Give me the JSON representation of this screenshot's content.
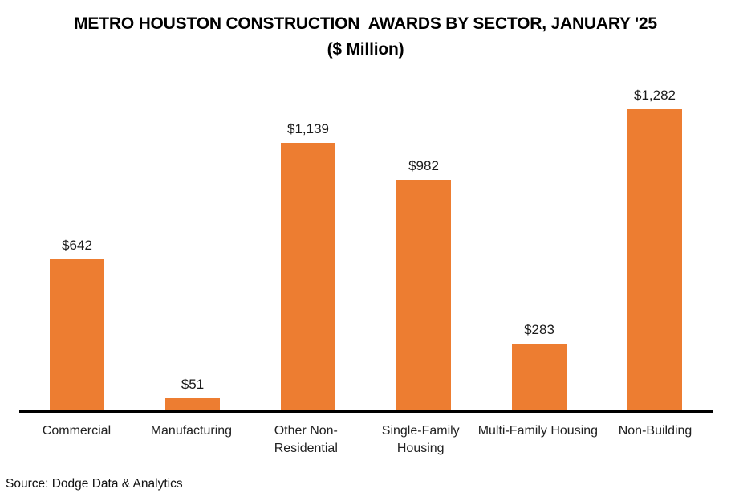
{
  "title": "METRO HOUSTON CONSTRUCTION  AWARDS BY SECTOR, JANUARY '25",
  "subtitle": "($ Million)",
  "source": "Source: Dodge Data & Analytics",
  "colors": {
    "bar": "#ED7D31",
    "axis": "#000000",
    "title_text": "#000000",
    "label_text": "#212121"
  },
  "chart_data": {
    "type": "bar",
    "title": "METRO HOUSTON CONSTRUCTION  AWARDS BY SECTOR, JANUARY '25",
    "subtitle": "($ Million)",
    "categories": [
      "Commercial",
      "Manufacturing",
      "Other Non-\nResidential",
      "Single-Family\nHousing",
      "Multi-Family Housing",
      "Non-Building"
    ],
    "values": [
      642,
      51,
      1139,
      982,
      283,
      1282
    ],
    "value_labels": [
      "$642",
      "$51",
      "$1,139",
      "$982",
      "$283",
      "$1,282"
    ],
    "xlabel": "",
    "ylabel": "",
    "ylim": [
      0,
      1282
    ],
    "grid": false,
    "legend": "none",
    "bar_color": "#ED7D31",
    "source": "Source: Dodge Data & Analytics"
  }
}
